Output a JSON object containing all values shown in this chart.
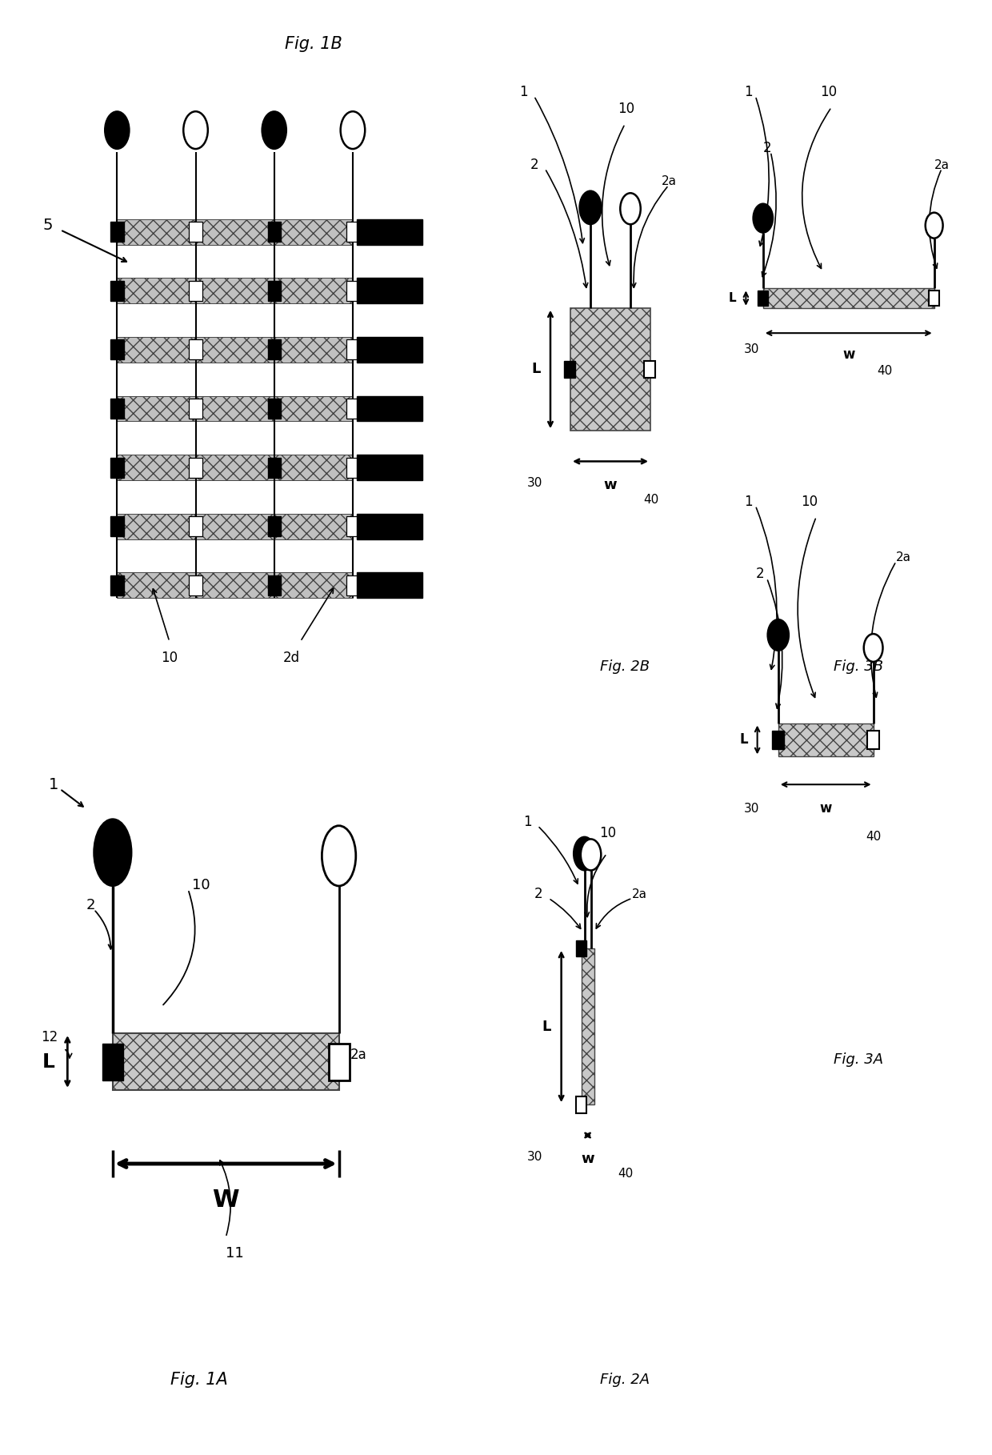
{
  "bg_color": "#ffffff",
  "layout": {
    "fig1B": [
      0.03,
      0.52,
      0.44,
      0.46
    ],
    "fig1A": [
      0.03,
      0.03,
      0.38,
      0.46
    ],
    "fig2A": [
      0.52,
      0.03,
      0.22,
      0.46
    ],
    "fig2B": [
      0.52,
      0.52,
      0.22,
      0.46
    ],
    "fig3A": [
      0.75,
      0.25,
      0.23,
      0.46
    ],
    "fig3B": [
      0.75,
      0.52,
      0.23,
      0.46
    ]
  }
}
